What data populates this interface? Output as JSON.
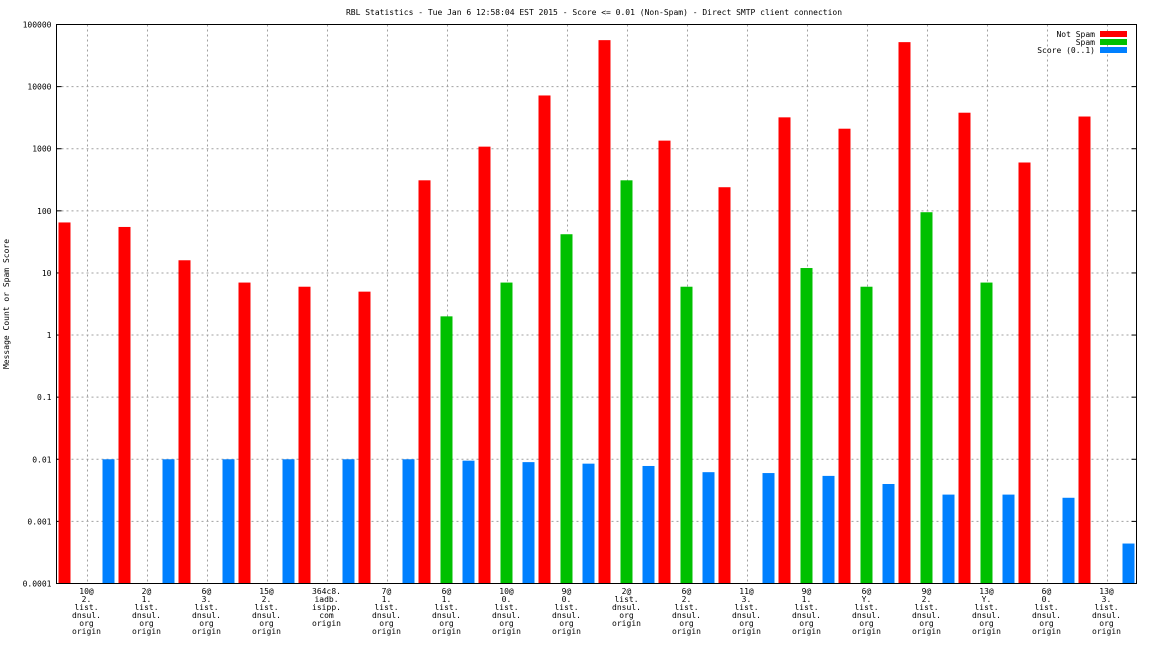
{
  "chart_data": {
    "type": "bar",
    "title": "RBL Statistics - Tue Jan  6 12:58:04 EST 2015 - Score <= 0.01 (Non-Spam) - Direct SMTP client connection",
    "ylabel": "Message Count or Spam Score",
    "xlabel": "",
    "yscale": "log",
    "ylim": [
      0.0001,
      100000
    ],
    "yticks": [
      "0.0001",
      "0.001",
      "0.01",
      "0.1",
      "1",
      "10",
      "100",
      "1000",
      "10000",
      "100000"
    ],
    "grid": true,
    "legend_position": "top-right",
    "categories": [
      [
        "10@",
        "2.",
        "list.",
        "dnsul.",
        "org",
        "origin"
      ],
      [
        "2@",
        "1.",
        "list.",
        "dnsul.",
        "org",
        "origin"
      ],
      [
        "6@",
        "3.",
        "list.",
        "dnsul.",
        "org",
        "origin"
      ],
      [
        "15@",
        "2.",
        "list.",
        "dnsul.",
        "org",
        "origin"
      ],
      [
        "364c8.",
        "iadb.",
        "isipp.",
        "com",
        "origin"
      ],
      [
        "7@",
        "1.",
        "list.",
        "dnsul.",
        "org",
        "origin"
      ],
      [
        "6@",
        "1.",
        "list.",
        "dnsul.",
        "org",
        "origin"
      ],
      [
        "10@",
        "0.",
        "list.",
        "dnsul.",
        "org",
        "origin"
      ],
      [
        "9@",
        "0.",
        "list.",
        "dnsul.",
        "org",
        "origin"
      ],
      [
        "2@",
        "list.",
        "dnsul.",
        "org",
        "origin"
      ],
      [
        "6@",
        "2.",
        "list.",
        "dnsul.",
        "org",
        "origin"
      ],
      [
        "11@",
        "3.",
        "list.",
        "dnsul.",
        "org",
        "origin"
      ],
      [
        "9@",
        "1.",
        "list.",
        "dnsul.",
        "org",
        "origin"
      ],
      [
        "6@",
        "Y.",
        "list.",
        "dnsul.",
        "org",
        "origin"
      ],
      [
        "9@",
        "2.",
        "list.",
        "dnsul.",
        "org",
        "origin"
      ],
      [
        "13@",
        "Y.",
        "list.",
        "dnsul.",
        "org",
        "origin"
      ],
      [
        "6@",
        "0.",
        "list.",
        "dnsul.",
        "org",
        "origin"
      ],
      [
        "13@",
        "3.",
        "list.",
        "dnsul.",
        "org",
        "origin"
      ]
    ],
    "series": [
      {
        "name": "Not Spam",
        "color": "#ff0000",
        "values": [
          65,
          55,
          16,
          7,
          6,
          5,
          310,
          1080,
          7200,
          56000,
          1350,
          240,
          3200,
          2100,
          52000,
          3800,
          600,
          3300
        ]
      },
      {
        "name": "Spam",
        "color": "#00c000",
        "values": [
          null,
          null,
          null,
          null,
          null,
          null,
          2,
          7,
          42,
          310,
          6,
          null,
          12,
          6,
          95,
          7,
          null,
          null
        ]
      },
      {
        "name": "Score (0..1)",
        "color": "#0080ff",
        "values": [
          0.01,
          0.01,
          0.01,
          0.01,
          0.01,
          0.01,
          0.0095,
          0.009,
          0.0085,
          0.0078,
          0.0062,
          0.006,
          0.0054,
          0.004,
          0.0027,
          0.0027,
          0.0024,
          0.00044
        ]
      }
    ]
  }
}
